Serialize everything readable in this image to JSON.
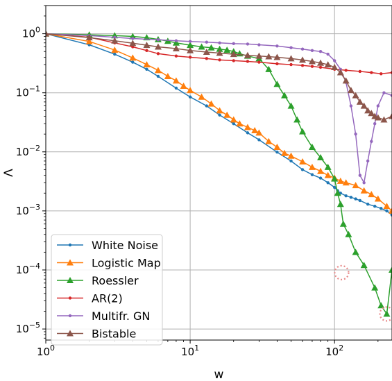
{
  "chart_data": {
    "type": "line",
    "title": "",
    "xlabel": "w",
    "ylabel": "Λ",
    "xscale": "log",
    "yscale": "log",
    "xlim": [
      1,
      250
    ],
    "ylim": [
      6.5e-06,
      3.0
    ],
    "grid": true,
    "legend_position": "lower-left",
    "x_ticks": [
      {
        "value": 1,
        "base": "10",
        "exp": "0"
      },
      {
        "value": 10,
        "base": "10",
        "exp": "1"
      },
      {
        "value": 100,
        "base": "10",
        "exp": "2"
      }
    ],
    "y_ticks": [
      {
        "value": 1,
        "base": "10",
        "exp": "0"
      },
      {
        "value": 0.1,
        "base": "10",
        "exp": "−1"
      },
      {
        "value": 0.01,
        "base": "10",
        "exp": "−2"
      },
      {
        "value": 0.001,
        "base": "10",
        "exp": "−3"
      },
      {
        "value": 0.0001,
        "base": "10",
        "exp": "−4"
      },
      {
        "value": 1e-05,
        "base": "10",
        "exp": "−5"
      }
    ],
    "series": [
      {
        "name": "White Noise",
        "color": "#1f77b4",
        "marker": "dot",
        "x": [
          1,
          2,
          3,
          4,
          5,
          6,
          8,
          10,
          13,
          16,
          20,
          25,
          30,
          40,
          50,
          60,
          70,
          80,
          90,
          100,
          105,
          110,
          120,
          130,
          140,
          150,
          170,
          190,
          210,
          230,
          250
        ],
        "y": [
          1.0,
          0.65,
          0.45,
          0.33,
          0.25,
          0.19,
          0.12,
          0.085,
          0.06,
          0.042,
          0.03,
          0.021,
          0.016,
          0.0099,
          0.007,
          0.005,
          0.0041,
          0.0036,
          0.003,
          0.0025,
          0.0022,
          0.002,
          0.0018,
          0.0017,
          0.0016,
          0.0015,
          0.0013,
          0.0012,
          0.0011,
          0.001,
          0.00085
        ]
      },
      {
        "name": "Logistic Map",
        "color": "#ff7f0e",
        "marker": "triangle",
        "x": [
          1,
          2,
          3,
          4,
          5,
          6,
          7,
          8,
          9,
          10,
          12,
          14,
          16,
          18,
          20,
          22,
          25,
          28,
          30,
          35,
          40,
          45,
          50,
          60,
          70,
          80,
          90,
          100,
          110,
          120,
          140,
          160,
          180,
          200,
          230,
          250
        ],
        "y": [
          1.0,
          0.74,
          0.53,
          0.39,
          0.3,
          0.24,
          0.19,
          0.16,
          0.13,
          0.11,
          0.085,
          0.065,
          0.05,
          0.042,
          0.035,
          0.03,
          0.026,
          0.023,
          0.021,
          0.015,
          0.012,
          0.0095,
          0.0085,
          0.0068,
          0.0055,
          0.0047,
          0.004,
          0.0036,
          0.0032,
          0.003,
          0.0027,
          0.0022,
          0.0019,
          0.0016,
          0.0012,
          0.001
        ]
      },
      {
        "name": "Roessler",
        "color": "#2ca02c",
        "marker": "triangle",
        "x": [
          1,
          2,
          3,
          4,
          5,
          6,
          7,
          8,
          10,
          12,
          14,
          16,
          18,
          20,
          22,
          25,
          30,
          35,
          40,
          45,
          50,
          55,
          60,
          70,
          80,
          90,
          100,
          105,
          110,
          115,
          125,
          140,
          160,
          190,
          210,
          230,
          250
        ],
        "y": [
          1.0,
          0.96,
          0.93,
          0.9,
          0.86,
          0.8,
          0.75,
          0.7,
          0.64,
          0.6,
          0.58,
          0.55,
          0.53,
          0.5,
          0.46,
          0.42,
          0.38,
          0.25,
          0.14,
          0.09,
          0.06,
          0.035,
          0.022,
          0.012,
          0.008,
          0.0055,
          0.0035,
          0.002,
          0.0013,
          0.0006,
          0.0004,
          0.0002,
          0.00012,
          5e-05,
          2.5e-05,
          1.8e-05,
          0.0001
        ]
      },
      {
        "name": "AR(2)",
        "color": "#d62728",
        "marker": "dot",
        "x": [
          1,
          2,
          3,
          4,
          5,
          6,
          8,
          10,
          13,
          16,
          20,
          25,
          30,
          40,
          50,
          60,
          70,
          80,
          100,
          120,
          150,
          180,
          210,
          250
        ],
        "y": [
          1.0,
          0.87,
          0.7,
          0.6,
          0.52,
          0.46,
          0.42,
          0.4,
          0.38,
          0.36,
          0.35,
          0.34,
          0.33,
          0.31,
          0.3,
          0.29,
          0.28,
          0.27,
          0.25,
          0.24,
          0.23,
          0.22,
          0.21,
          0.22
        ]
      },
      {
        "name": "Multifr. GN",
        "color": "#9467bd",
        "marker": "dot",
        "x": [
          1,
          2,
          3,
          4,
          6,
          8,
          10,
          13,
          16,
          20,
          25,
          30,
          40,
          50,
          60,
          70,
          80,
          90,
          100,
          110,
          120,
          130,
          140,
          150,
          160,
          170,
          180,
          190,
          200,
          220,
          250
        ],
        "y": [
          1.0,
          0.93,
          0.87,
          0.83,
          0.79,
          0.76,
          0.74,
          0.72,
          0.7,
          0.68,
          0.67,
          0.65,
          0.62,
          0.58,
          0.55,
          0.52,
          0.5,
          0.45,
          0.35,
          0.25,
          0.15,
          0.06,
          0.02,
          0.004,
          0.003,
          0.007,
          0.015,
          0.03,
          0.06,
          0.1,
          0.09
        ]
      },
      {
        "name": "Bistable",
        "color": "#8c564b",
        "marker": "triangle",
        "x": [
          1,
          2,
          3,
          4,
          5,
          6,
          8,
          10,
          13,
          16,
          20,
          25,
          30,
          35,
          40,
          50,
          60,
          70,
          80,
          90,
          100,
          110,
          120,
          130,
          140,
          150,
          160,
          170,
          180,
          190,
          200,
          220,
          250
        ],
        "y": [
          1.0,
          0.86,
          0.76,
          0.69,
          0.64,
          0.6,
          0.56,
          0.52,
          0.49,
          0.47,
          0.45,
          0.43,
          0.42,
          0.41,
          0.4,
          0.38,
          0.36,
          0.34,
          0.32,
          0.3,
          0.27,
          0.22,
          0.16,
          0.11,
          0.09,
          0.07,
          0.06,
          0.05,
          0.045,
          0.04,
          0.038,
          0.035,
          0.04
        ]
      }
    ],
    "highlighted_points": [
      {
        "x": 112,
        "y": 9e-05
      },
      {
        "x": 230,
        "y": 1.8e-05
      }
    ]
  }
}
